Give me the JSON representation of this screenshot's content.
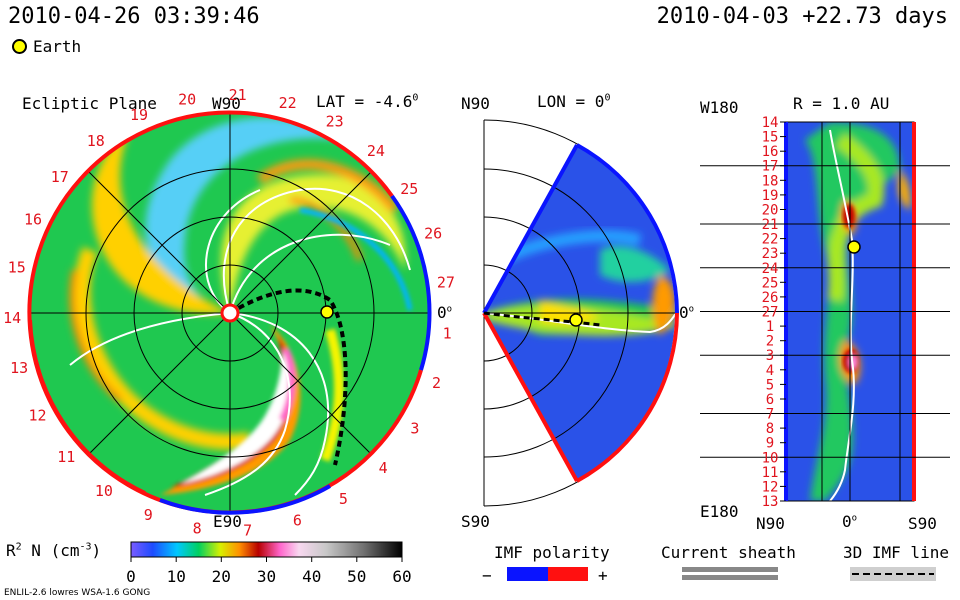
{
  "header": {
    "datetime": "2010-04-26 03:39:46",
    "run_info": "2010-04-03 +22.73 days",
    "earth_legend": "Earth"
  },
  "panels": {
    "ecliptic": {
      "title": "Ecliptic Plane",
      "top_label": "W90",
      "bottom_label": "E90",
      "right_label": "0",
      "lat_label": "LAT = -4.6",
      "lat_sup": "0",
      "carrington_numbers": [
        "1",
        "2",
        "3",
        "4",
        "5",
        "6",
        "7",
        "8",
        "9",
        "10",
        "11",
        "12",
        "13",
        "14",
        "15",
        "16",
        "17",
        "18",
        "19",
        "20",
        "21",
        "22",
        "23",
        "24",
        "25",
        "26",
        "27"
      ]
    },
    "meridional": {
      "top_label": "N90",
      "lon_label": "LON = 0",
      "lon_sup": "0",
      "right_label": "0",
      "bottom_label": "S90"
    },
    "radial": {
      "top_left_label": "W180",
      "title": "R = 1.0 AU",
      "bottom_left_label": "E180",
      "x_labels": [
        "N90",
        "0",
        "S90"
      ],
      "y_labels": [
        "14",
        "15",
        "16",
        "17",
        "18",
        "19",
        "20",
        "21",
        "22",
        "23",
        "24",
        "25",
        "26",
        "27",
        "1",
        "2",
        "3",
        "4",
        "5",
        "6",
        "7",
        "8",
        "9",
        "10",
        "11",
        "12",
        "13"
      ]
    }
  },
  "colorbar": {
    "label": "R",
    "label_sup": "2",
    "label_rest": " N (cm",
    "unit_sup": "-3",
    "label_close": ")",
    "ticks": [
      "0",
      "10",
      "20",
      "30",
      "40",
      "50",
      "60"
    ],
    "range": [
      0,
      60
    ]
  },
  "legends": {
    "imf_polarity": "IMF polarity",
    "minus": "−",
    "plus": "+",
    "current_sheath": "Current sheath",
    "imf_line": "3D IMF line"
  },
  "footer": {
    "model": "ENLIL-2.6 lowres WSA-1.6 GONG"
  },
  "colors": {
    "negative_polarity": "#0a14ff",
    "positive_polarity": "#ff1010",
    "earth_marker": "#ffff00"
  },
  "chart_data": {
    "type": "heatmap",
    "quantity": "scaled density R^2 N (cm^-3)",
    "earth_position": {
      "lat_deg": -4.6,
      "lon_deg": 0,
      "r_au": 1.0
    },
    "scale": [
      0,
      60
    ]
  }
}
